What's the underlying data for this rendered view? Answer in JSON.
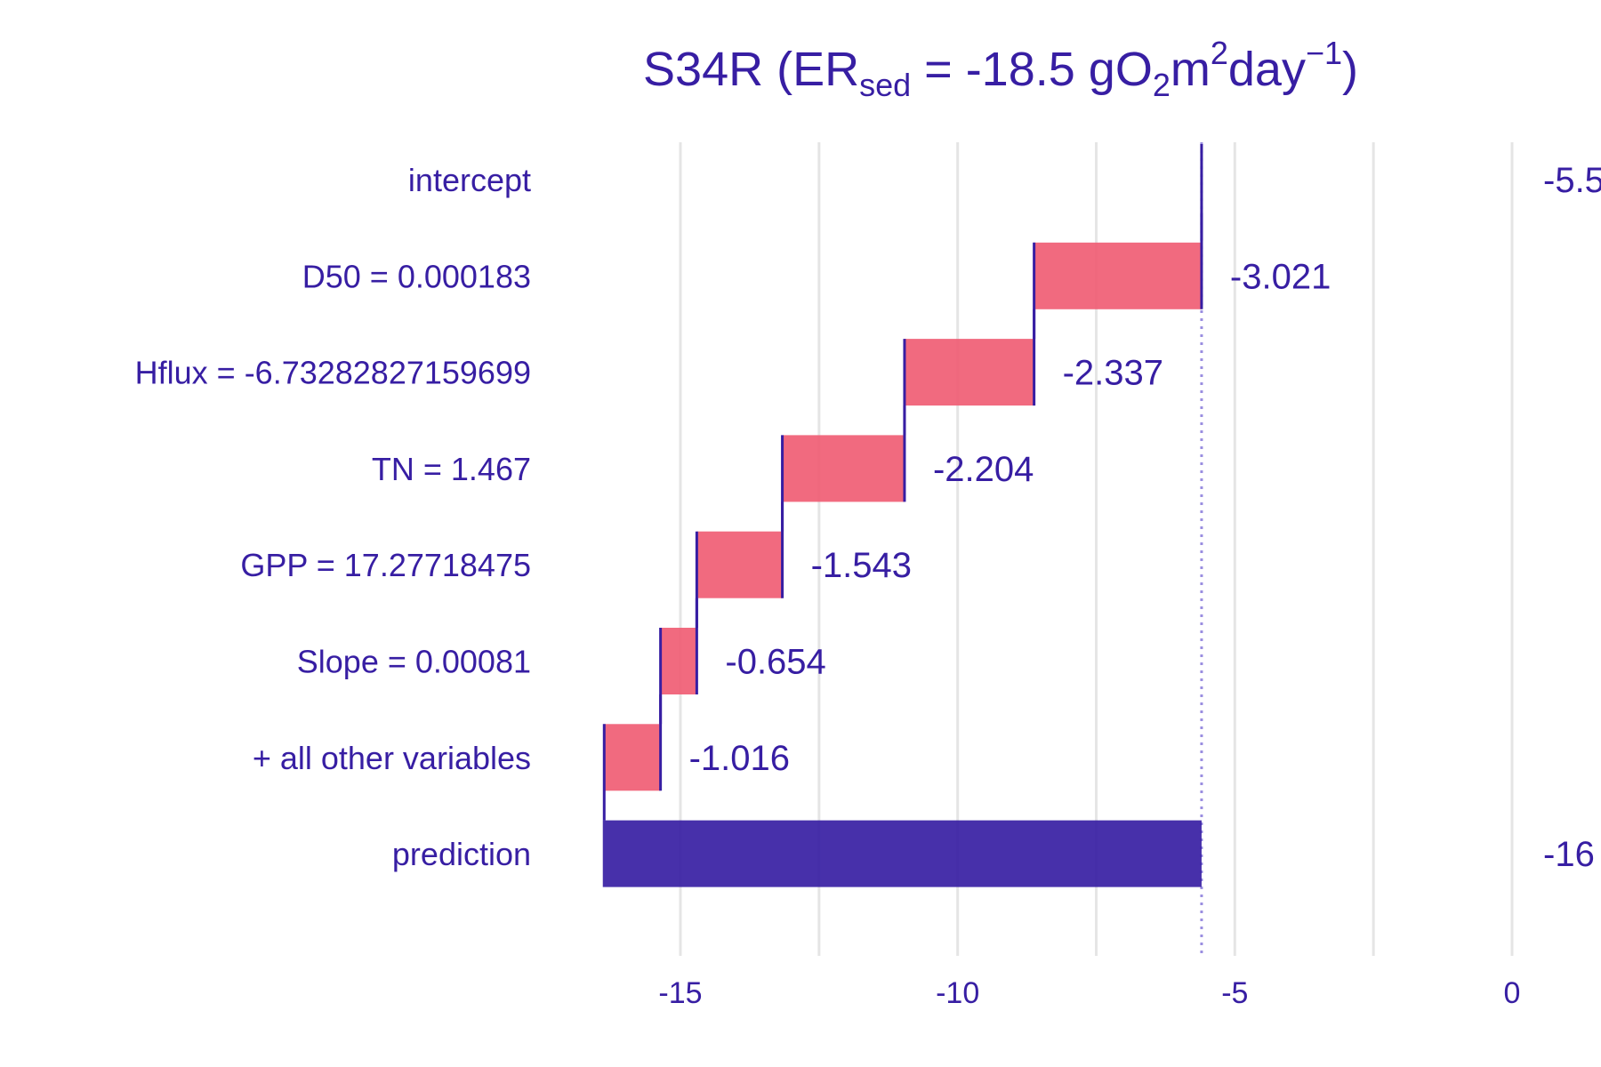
{
  "chart_data": {
    "type": "bar",
    "subtype": "waterfall",
    "title": {
      "main": "S34R (ER",
      "sub": "sed",
      "mid": " = -18.5 gO",
      "sub2": "2",
      "mid2": "m",
      "sup": "2",
      "mid3": "day",
      "sup2": "−1",
      "end": ")"
    },
    "categories": [
      "intercept",
      "D50 = 0.000183",
      "Hflux = -6.73282827159699",
      "TN = 1.467",
      "GPP = 17.27718475",
      "Slope = 0.00081",
      "+ all other variables",
      "prediction"
    ],
    "contributions": [
      -5.5,
      -3.021,
      -2.337,
      -2.204,
      -1.543,
      -0.654,
      -1.016,
      -16.3
    ],
    "value_labels": [
      "-5.5",
      "-3.021",
      "-2.337",
      "-2.204",
      "-1.543",
      "-0.654",
      "-1.016",
      "-16"
    ],
    "baseline": -5.6,
    "prediction": -16.4,
    "xlim": [
      -17.7,
      0
    ],
    "xticks": [
      -15,
      -10,
      -5,
      0
    ],
    "xtick_labels": [
      "-15",
      "-10",
      "-5",
      "0"
    ],
    "grid": true,
    "colors": {
      "negative": "#f05a71",
      "prediction": "#371ea3",
      "text": "#371ea3",
      "grid": "#e5e5e5",
      "baseline_line": "#9a8ee0"
    }
  }
}
